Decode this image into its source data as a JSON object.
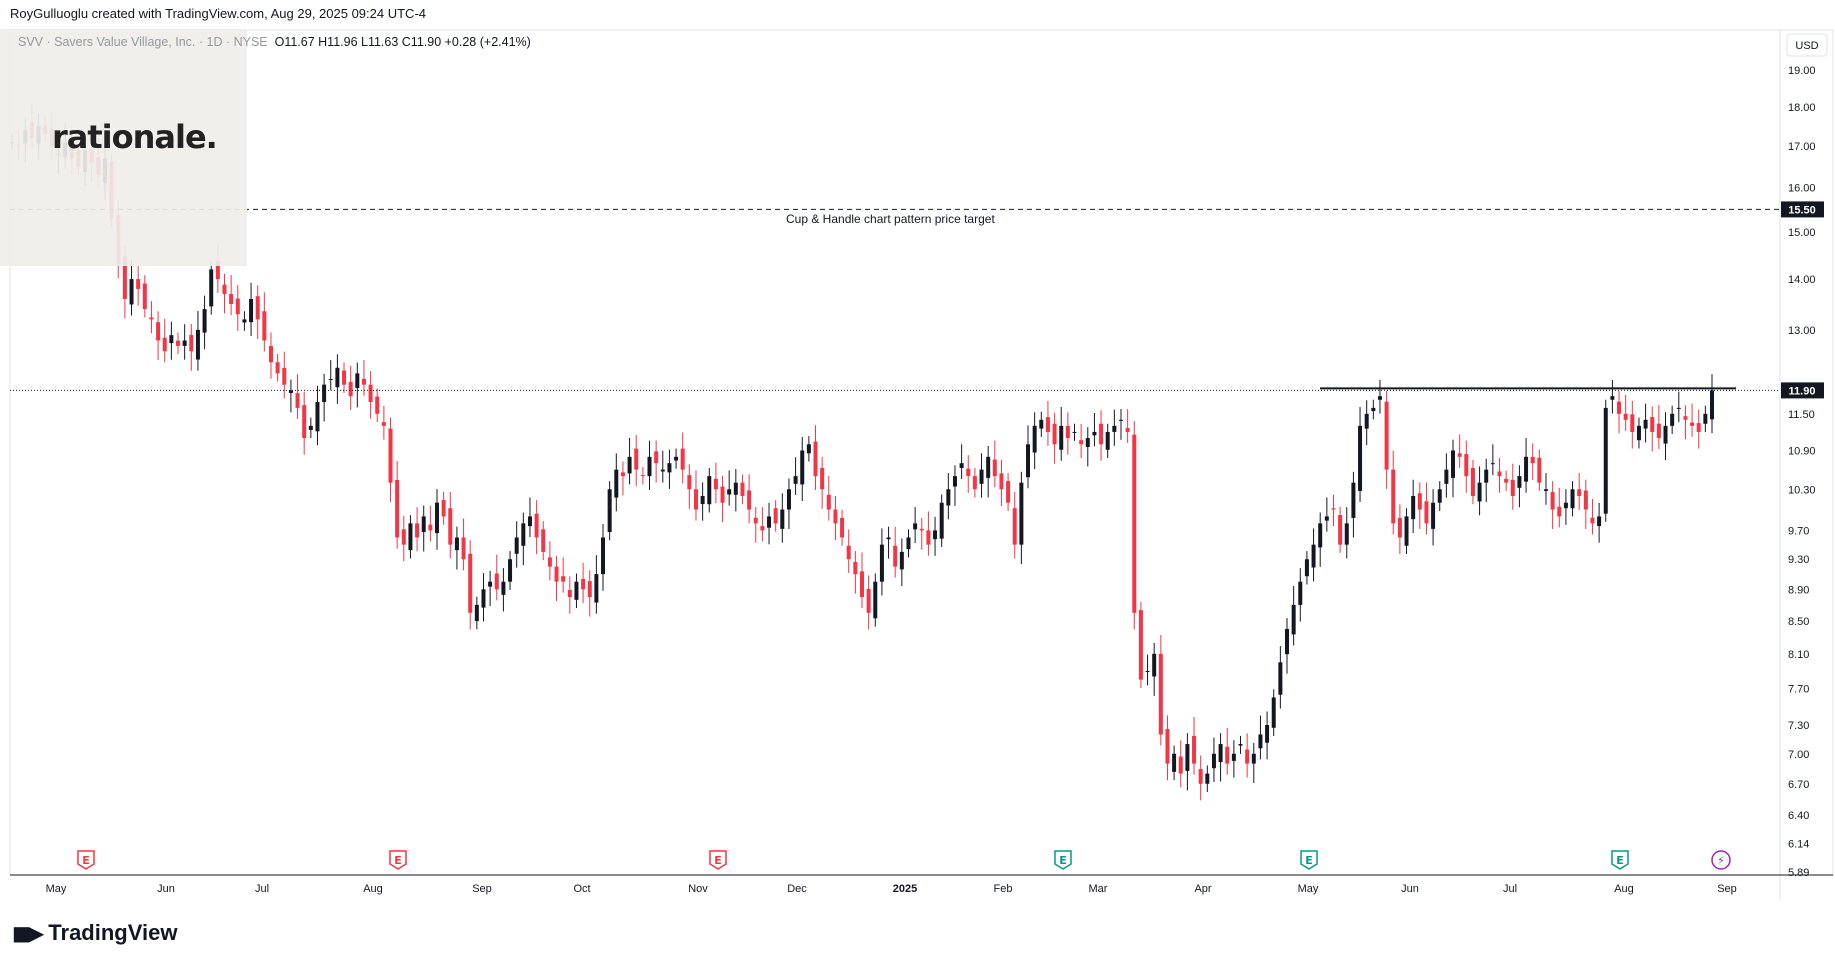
{
  "header": {
    "attribution": "RoyGulluoglu created with TradingView.com, Aug 29, 2025 09:24 UTC-4"
  },
  "symbol": {
    "name": "SVV · Savers Value Village, Inc. · 1D · NYSE",
    "ohlc": "O11.67 H11.96 L11.63 C11.90 +0.28 (+2.41%)"
  },
  "overlay_logo": "rationale.",
  "footer_logo": "TradingView",
  "currency": "USD",
  "annotation": "Cup & Handle chart pattern price target",
  "colors": {
    "up": "#131722",
    "down": "#f23645",
    "grid": "#f0f3fa",
    "axis_text": "#131722",
    "earnings_red": "#f23645",
    "earnings_green": "#089981",
    "dividend_purple": "#9c27b0"
  },
  "chart_data": {
    "type": "candlestick",
    "y_axis": {
      "scale": "log",
      "ticks": [
        "19.00",
        "18.00",
        "17.00",
        "16.00",
        "15.00",
        "14.00",
        "13.00",
        "11.50",
        "10.90",
        "10.30",
        "9.70",
        "9.30",
        "8.90",
        "8.50",
        "8.10",
        "7.70",
        "7.30",
        "7.00",
        "6.70",
        "6.40",
        "6.14",
        "5.89"
      ],
      "ylim": [
        5.89,
        21.2
      ]
    },
    "x_axis": {
      "labels": [
        "May",
        "Jun",
        "Jul",
        "Aug",
        "Sep",
        "Oct",
        "Nov",
        "Dec",
        "2025",
        "Feb",
        "Mar",
        "Apr",
        "May",
        "Jun",
        "Jul",
        "Aug",
        "Sep"
      ],
      "bold": [
        "2025"
      ]
    },
    "price_labels": [
      {
        "value": "15.50",
        "style": "dashed"
      },
      {
        "value": "11.90",
        "style": "dotted",
        "current": true
      }
    ],
    "resistance": {
      "value": 11.9,
      "from": "2025-05",
      "to": "2025-08"
    },
    "events": [
      {
        "type": "earnings",
        "color": "red",
        "label": "E",
        "month": "May 2024"
      },
      {
        "type": "earnings",
        "color": "red",
        "label": "E",
        "month": "Aug 2024"
      },
      {
        "type": "earnings",
        "color": "red",
        "label": "E",
        "month": "Nov 2024"
      },
      {
        "type": "earnings",
        "color": "green",
        "label": "E",
        "month": "Feb 2025"
      },
      {
        "type": "earnings",
        "color": "green",
        "label": "E",
        "month": "May 2025"
      },
      {
        "type": "earnings",
        "color": "green",
        "label": "E",
        "month": "Aug 2025"
      },
      {
        "type": "split",
        "color": "purple",
        "label": "⚡",
        "month": "Sep 2025"
      }
    ],
    "closes": [
      17.1,
      17.0,
      17.4,
      17.2,
      17.5,
      17.3,
      17.0,
      16.8,
      17.1,
      16.7,
      16.5,
      16.9,
      16.6,
      16.3,
      16.7,
      15.3,
      14.3,
      13.6,
      14.0,
      13.8,
      13.4,
      13.2,
      12.8,
      12.6,
      12.9,
      12.7,
      12.8,
      12.6,
      13.0,
      13.4,
      14.2,
      14.0,
      13.7,
      13.5,
      13.3,
      13.2,
      13.6,
      13.2,
      12.8,
      12.4,
      12.2,
      12.0,
      11.9,
      11.6,
      11.1,
      11.3,
      11.7,
      12.0,
      12.1,
      12.3,
      12.0,
      11.8,
      12.2,
      12.0,
      11.7,
      11.5,
      11.3,
      10.4,
      9.6,
      9.5,
      9.8,
      9.6,
      9.9,
      9.7,
      10.1,
      9.9,
      9.5,
      9.6,
      9.3,
      8.6,
      8.7,
      8.9,
      9.0,
      8.9,
      9.0,
      9.3,
      9.6,
      9.8,
      9.9,
      9.6,
      9.4,
      9.2,
      9.0,
      9.0,
      8.8,
      9.0,
      8.9,
      8.8,
      9.1,
      9.6,
      10.3,
      10.6,
      10.5,
      10.8,
      10.6,
      10.5,
      10.8,
      10.7,
      10.6,
      10.7,
      10.8,
      10.6,
      10.3,
      10.0,
      10.2,
      10.5,
      10.3,
      10.1,
      10.3,
      10.4,
      10.2,
      10.0,
      9.8,
      9.7,
      9.9,
      9.8,
      10.0,
      10.3,
      10.5,
      10.9,
      11.0,
      10.5,
      10.3,
      10.0,
      9.8,
      9.6,
      9.3,
      9.1,
      8.8,
      8.6,
      9.0,
      9.5,
      9.6,
      9.2,
      9.4,
      9.6,
      9.8,
      9.7,
      9.5,
      9.7,
      10.1,
      10.3,
      10.5,
      10.7,
      10.5,
      10.3,
      10.6,
      10.8,
      10.5,
      10.3,
      10.1,
      9.5,
      10.4,
      11.0,
      11.3,
      11.4,
      11.2,
      11.0,
      11.3,
      11.1,
      11.2,
      11.0,
      11.1,
      11.2,
      11.0,
      11.2,
      11.3,
      11.4,
      11.2,
      8.6,
      7.8,
      7.9,
      8.1,
      7.2,
      6.9,
      7.0,
      6.8,
      7.1,
      6.9,
      6.7,
      6.8,
      7.0,
      7.1,
      6.9,
      7.0,
      7.1,
      6.9,
      7.0,
      7.2,
      7.3,
      7.6,
      8.0,
      8.4,
      8.7,
      9.0,
      9.3,
      9.5,
      9.8,
      9.9,
      10.0,
      9.5,
      9.8,
      10.4,
      11.3,
      11.5,
      11.6,
      11.8,
      10.6,
      9.8,
      9.6,
      9.9,
      10.2,
      10.0,
      9.8,
      10.1,
      10.3,
      10.6,
      10.9,
      10.8,
      10.5,
      10.2,
      10.4,
      10.6,
      10.7,
      10.5,
      10.4,
      10.2,
      10.5,
      10.8,
      10.7,
      10.4,
      10.3,
      10.0,
      9.9,
      10.1,
      10.3,
      10.2,
      10.0,
      9.8,
      9.9,
      11.6,
      11.8,
      11.5,
      11.4,
      11.2,
      11.3,
      11.4,
      11.2,
      11.1,
      11.3,
      11.5,
      11.6,
      11.4,
      11.3,
      11.2,
      11.5,
      11.9
    ]
  }
}
